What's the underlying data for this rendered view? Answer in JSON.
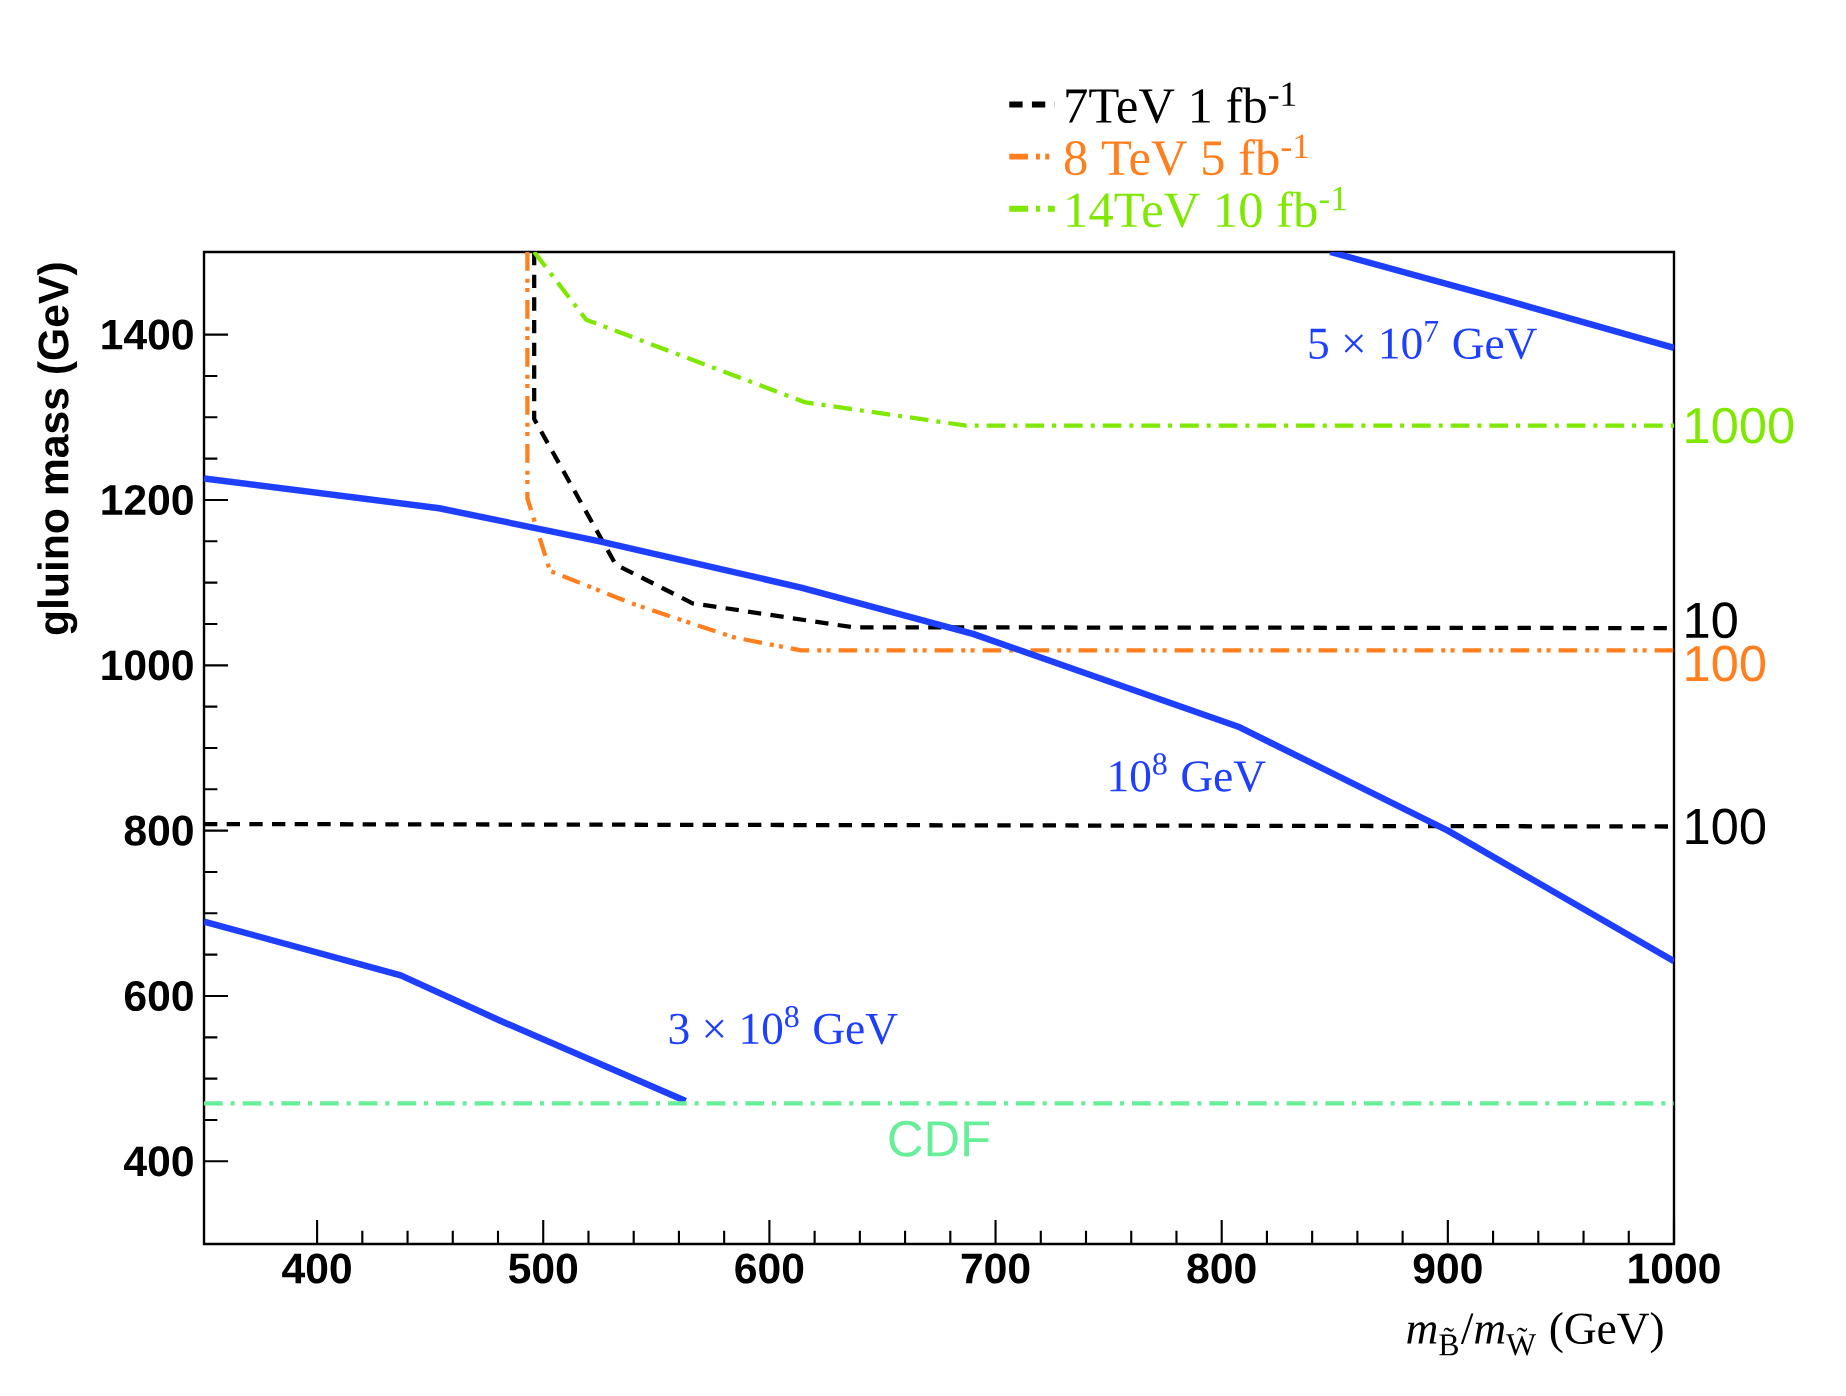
{
  "chart_data": {
    "type": "line",
    "xlabel": "*m*$_{B̃}$/*m*$_{W̃}$ (GeV)",
    "ylabel": "gluino mass (GeV)",
    "xlim": [
      350,
      1000
    ],
    "ylim": [
      300,
      1500
    ],
    "xticks": [
      400,
      500,
      600,
      700,
      800,
      900,
      1000
    ],
    "yticks": [
      400,
      600,
      800,
      1000,
      1200,
      1400
    ],
    "legend": "top right",
    "series": [
      {
        "name": "7TeV 1 fb$^{-1}$",
        "color": "#000000",
        "line_style": "dashed",
        "x": [
          496,
          496,
          532,
          566,
          637,
          1000
        ],
        "values": [
          1500,
          1298,
          1122,
          1075,
          1046,
          1045
        ]
      },
      {
        "color": "#000000",
        "line_style": "dashed",
        "x": [
          350,
          1000
        ],
        "values": [
          808,
          805
        ]
      },
      {
        "name": "8 TeV 5 fb$^{-1}$",
        "color": "#ff7f1e",
        "line_style": "dashdotdot",
        "x": [
          493,
          493,
          503,
          540,
          584,
          614,
          1000
        ],
        "values": [
          1500,
          1202,
          1114,
          1074,
          1034,
          1018,
          1018
        ]
      },
      {
        "name": "14TeV 10 fb$^{-1}$",
        "color": "#7fe800",
        "line_style": "dashdot",
        "x": [
          496,
          519,
          616,
          687,
          1000
        ],
        "values": [
          1500,
          1418,
          1318,
          1290,
          1290
        ]
      },
      {
        "color": "#1f3fff",
        "line_style": "solid",
        "x": [
          848,
          924,
          1000
        ],
        "values": [
          1500,
          1443,
          1384
        ]
      },
      {
        "color": "#1f3fff",
        "line_style": "solid",
        "x": [
          350,
          454,
          525,
          614,
          690,
          808,
          900,
          1000
        ],
        "values": [
          1226,
          1190,
          1150,
          1094,
          1038,
          925,
          800,
          642
        ]
      },
      {
        "color": "#1f3fff",
        "line_style": "solid",
        "x": [
          350,
          437,
          481,
          563
        ],
        "values": [
          690,
          625,
          570,
          473
        ]
      }
    ],
    "ref_lines": [
      {
        "axis": "y",
        "value": 470,
        "color": "#66ee99",
        "line_style": "dashdot",
        "label": "CDF"
      }
    ],
    "annotations": [
      {
        "text": "5 × 10$^{7}$ GeV",
        "x": 941,
        "y": 1430
      },
      {
        "text": "10$^{8}$ GeV",
        "x": 821,
        "y": 907
      },
      {
        "text": "3 × 10$^{8}$ GeV",
        "x": 563,
        "y": 473
      },
      {
        "text": "10",
        "x": 1000,
        "y": 1045
      },
      {
        "text": "100",
        "x": 1000,
        "y": 805
      },
      {
        "text": "100",
        "x": 1000,
        "y": 1018
      },
      {
        "text": "1000",
        "x": 1000,
        "y": 1290
      }
    ]
  }
}
